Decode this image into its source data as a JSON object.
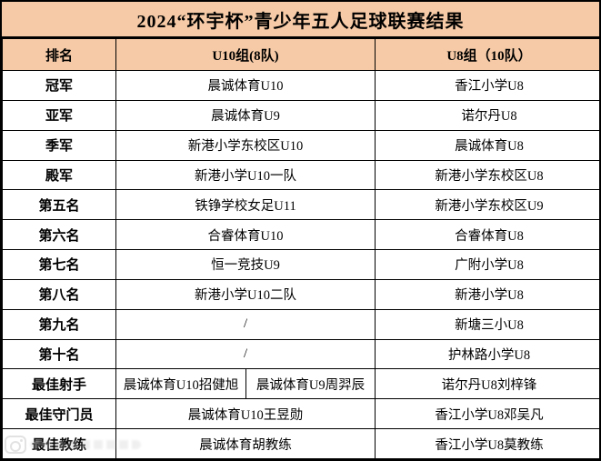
{
  "title": "2024“环宇杯”青少年五人足球联赛结果",
  "colors": {
    "header_bg": "#f6caa6",
    "row_bg": "#ffffff",
    "border": "#000000",
    "text": "#000000"
  },
  "table": {
    "columns": [
      "排名",
      "U10组(8队)",
      "U8组（10队）"
    ],
    "rows": [
      {
        "rank": "冠军",
        "u10": [
          "晨诚体育U10"
        ],
        "u8": "香江小学U8"
      },
      {
        "rank": "亚军",
        "u10": [
          "晨诚体育U9"
        ],
        "u8": "诺尔丹U8"
      },
      {
        "rank": "季军",
        "u10": [
          "新港小学东校区U10"
        ],
        "u8": "晨诚体育U8"
      },
      {
        "rank": "殿军",
        "u10": [
          "新港小学U10一队"
        ],
        "u8": "新港小学东校区U8"
      },
      {
        "rank": "第五名",
        "u10": [
          "铁铮学校女足U11"
        ],
        "u8": "新港小学东校区U9"
      },
      {
        "rank": "第六名",
        "u10": [
          "合睿体育U10"
        ],
        "u8": "合睿体育U8"
      },
      {
        "rank": "第七名",
        "u10": [
          "恒一竞技U9"
        ],
        "u8": "广附小学U8"
      },
      {
        "rank": "第八名",
        "u10": [
          "新港小学U10二队"
        ],
        "u8": "新港小学U8"
      },
      {
        "rank": "第九名",
        "u10": [
          "/"
        ],
        "u8": "新塘三小U8"
      },
      {
        "rank": "第十名",
        "u10": [
          "/"
        ],
        "u8": "护林路小学U8"
      },
      {
        "rank": "最佳射手",
        "u10": [
          "晨诚体育U10招健旭",
          "晨诚体育U9周羿辰"
        ],
        "u8": "诺尔丹U8刘梓锋"
      },
      {
        "rank": "最佳守门员",
        "u10": [
          "晨诚体育U10王昱勋"
        ],
        "u8": "香江小学U8邓吴凡"
      },
      {
        "rank": "最佳教练",
        "u10": [
          "晨诚体育胡教练"
        ],
        "u8": "香江小学U8莫教练"
      }
    ]
  }
}
